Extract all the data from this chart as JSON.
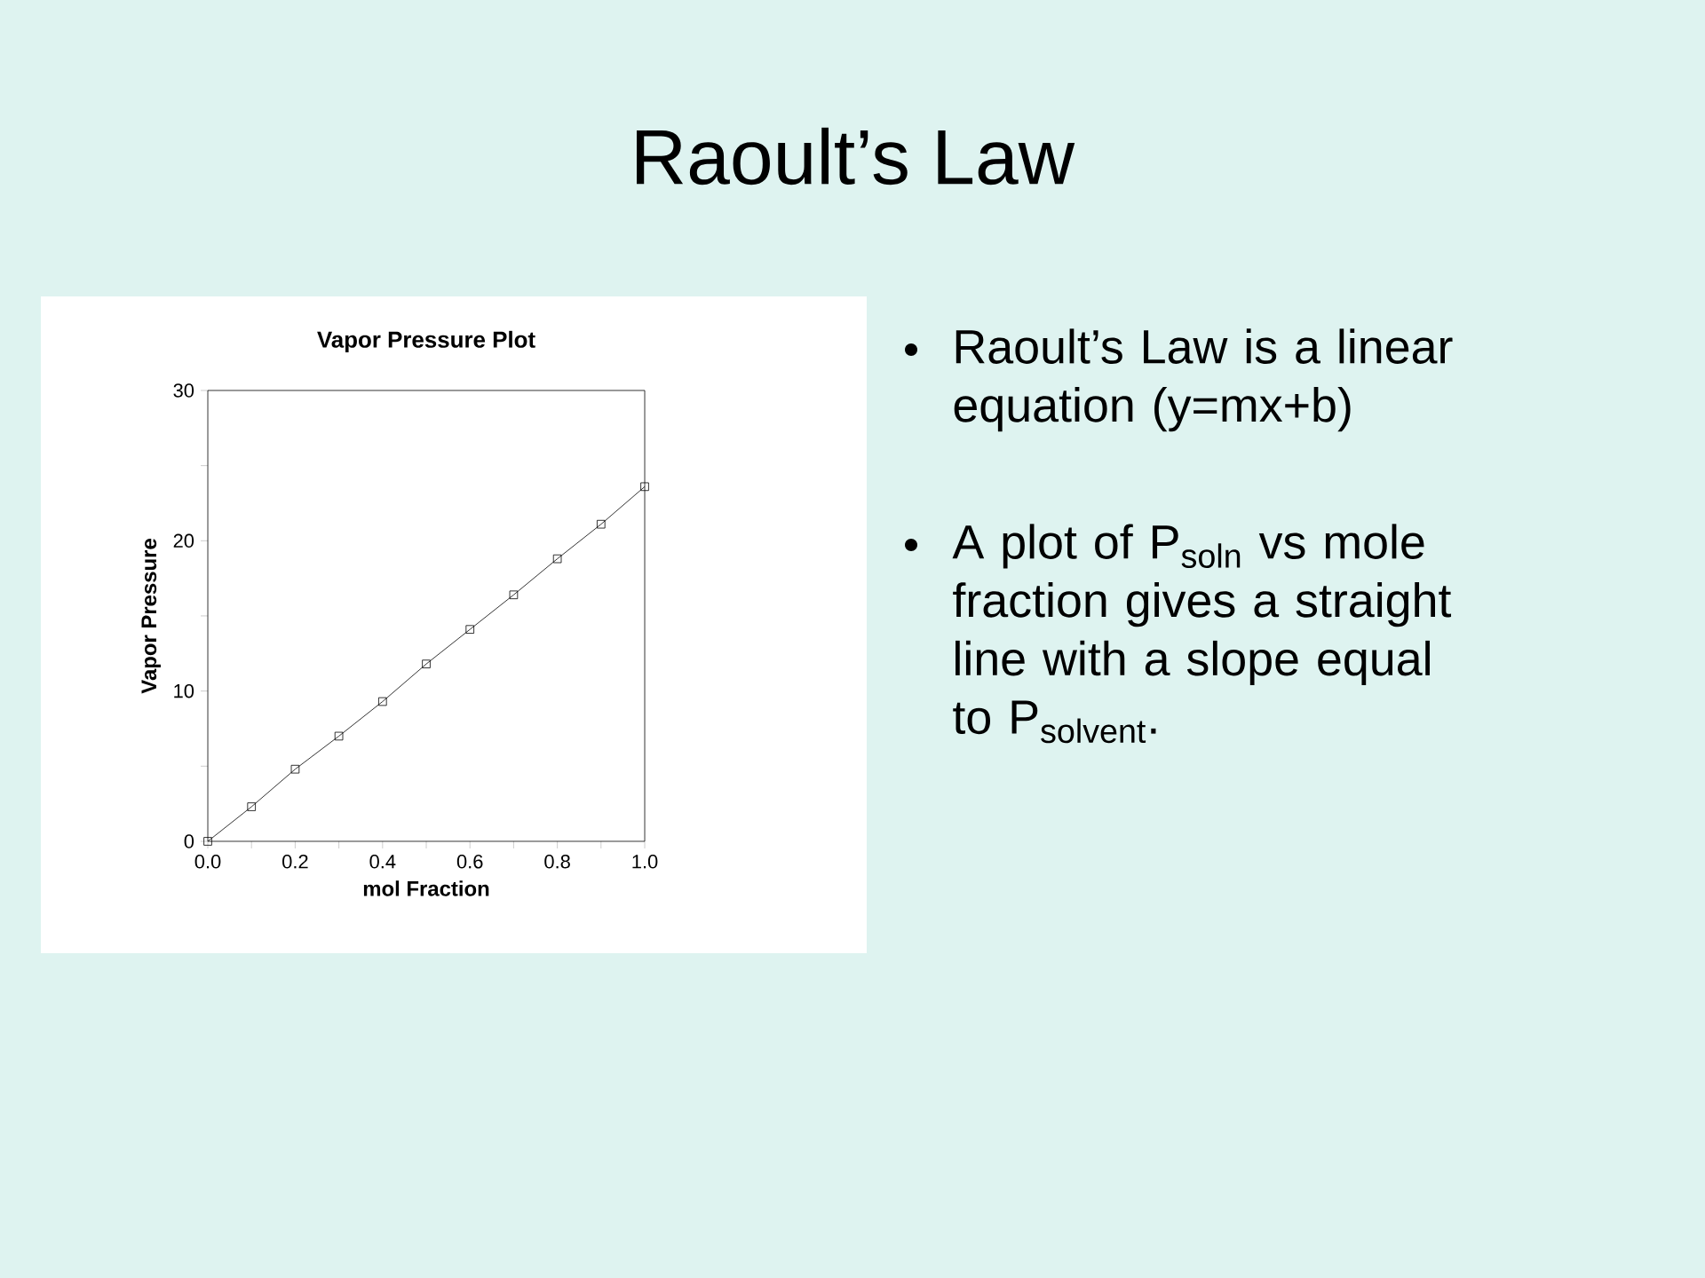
{
  "chart_data": {
    "type": "line",
    "title": "Vapor Pressure Plot",
    "xlabel": "mol Fraction",
    "ylabel": "Vapor Pressure",
    "x": [
      0,
      0.1,
      0.2,
      0.3,
      0.4,
      0.5,
      0.6,
      0.7,
      0.8,
      0.9,
      1.0
    ],
    "series": [
      {
        "color": "#000000",
        "values": [
          0,
          2.3,
          4.8,
          7.0,
          9.3,
          11.8,
          14.1,
          16.4,
          18.8,
          21.1,
          23.6
        ]
      }
    ],
    "xlim": [
      0,
      1
    ],
    "xticks": [
      {
        "value": 0,
        "label": "0.0"
      },
      {
        "value": 0.1,
        "label": null
      },
      {
        "value": 0.2,
        "label": "0.2"
      },
      {
        "value": 0.3,
        "label": null
      },
      {
        "value": 0.4,
        "label": "0.4"
      },
      {
        "value": 0.5,
        "label": null
      },
      {
        "value": 0.6,
        "label": "0.6"
      },
      {
        "value": 0.7,
        "label": null
      },
      {
        "value": 0.8,
        "label": "0.8"
      },
      {
        "value": 0.9,
        "label": null
      },
      {
        "value": 1.0,
        "label": "1.0"
      }
    ],
    "ylim": [
      0,
      30
    ],
    "yticks": [
      0,
      {
        "value": 5,
        "label": null
      },
      10,
      {
        "value": 15,
        "label": null
      },
      20,
      {
        "value": 25,
        "label": null
      },
      30
    ],
    "grid": false,
    "marker": "square",
    "line_style": "solid",
    "annotations": [
      "Raoult’s Law",
      "Raoult’s Law is a linear equation (y=mx+b)",
      "A plot of P$_{soln}$ vs mole fraction gives a straight line with a slope equal to P$_{solvent}$."
    ]
  }
}
